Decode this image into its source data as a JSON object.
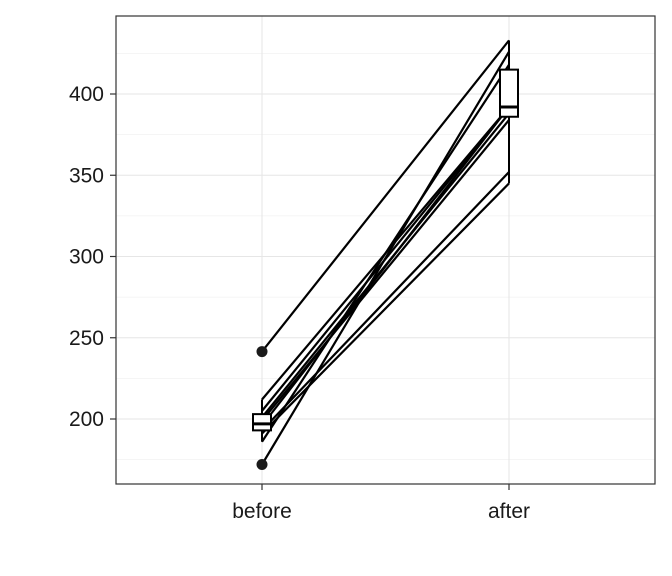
{
  "chart_data": {
    "type": "line",
    "categories": [
      "before",
      "after"
    ],
    "ylim": [
      160,
      448
    ],
    "yticks": [
      200,
      250,
      300,
      350,
      400
    ],
    "grid": true,
    "legend": "none",
    "series": [
      {
        "values": [
          241.5,
          433
        ]
      },
      {
        "values": [
          172,
          426
        ]
      },
      {
        "values": [
          186,
          418
        ]
      },
      {
        "values": [
          212,
          392
        ]
      },
      {
        "values": [
          205,
          392
        ]
      },
      {
        "values": [
          201,
          388
        ]
      },
      {
        "values": [
          199,
          384
        ]
      },
      {
        "values": [
          196,
          392
        ]
      },
      {
        "values": [
          193,
          352
        ]
      },
      {
        "values": [
          191,
          345
        ]
      }
    ],
    "boxplots": [
      {
        "category": "before",
        "q1": 193,
        "median": 197,
        "q3": 203,
        "whisker_low": 186,
        "whisker_high": 212,
        "outliers": [
          172,
          241.5
        ]
      },
      {
        "category": "after",
        "q1": 386,
        "median": 392,
        "q3": 415,
        "whisker_low": 345,
        "whisker_high": 433,
        "outliers": []
      }
    ]
  }
}
